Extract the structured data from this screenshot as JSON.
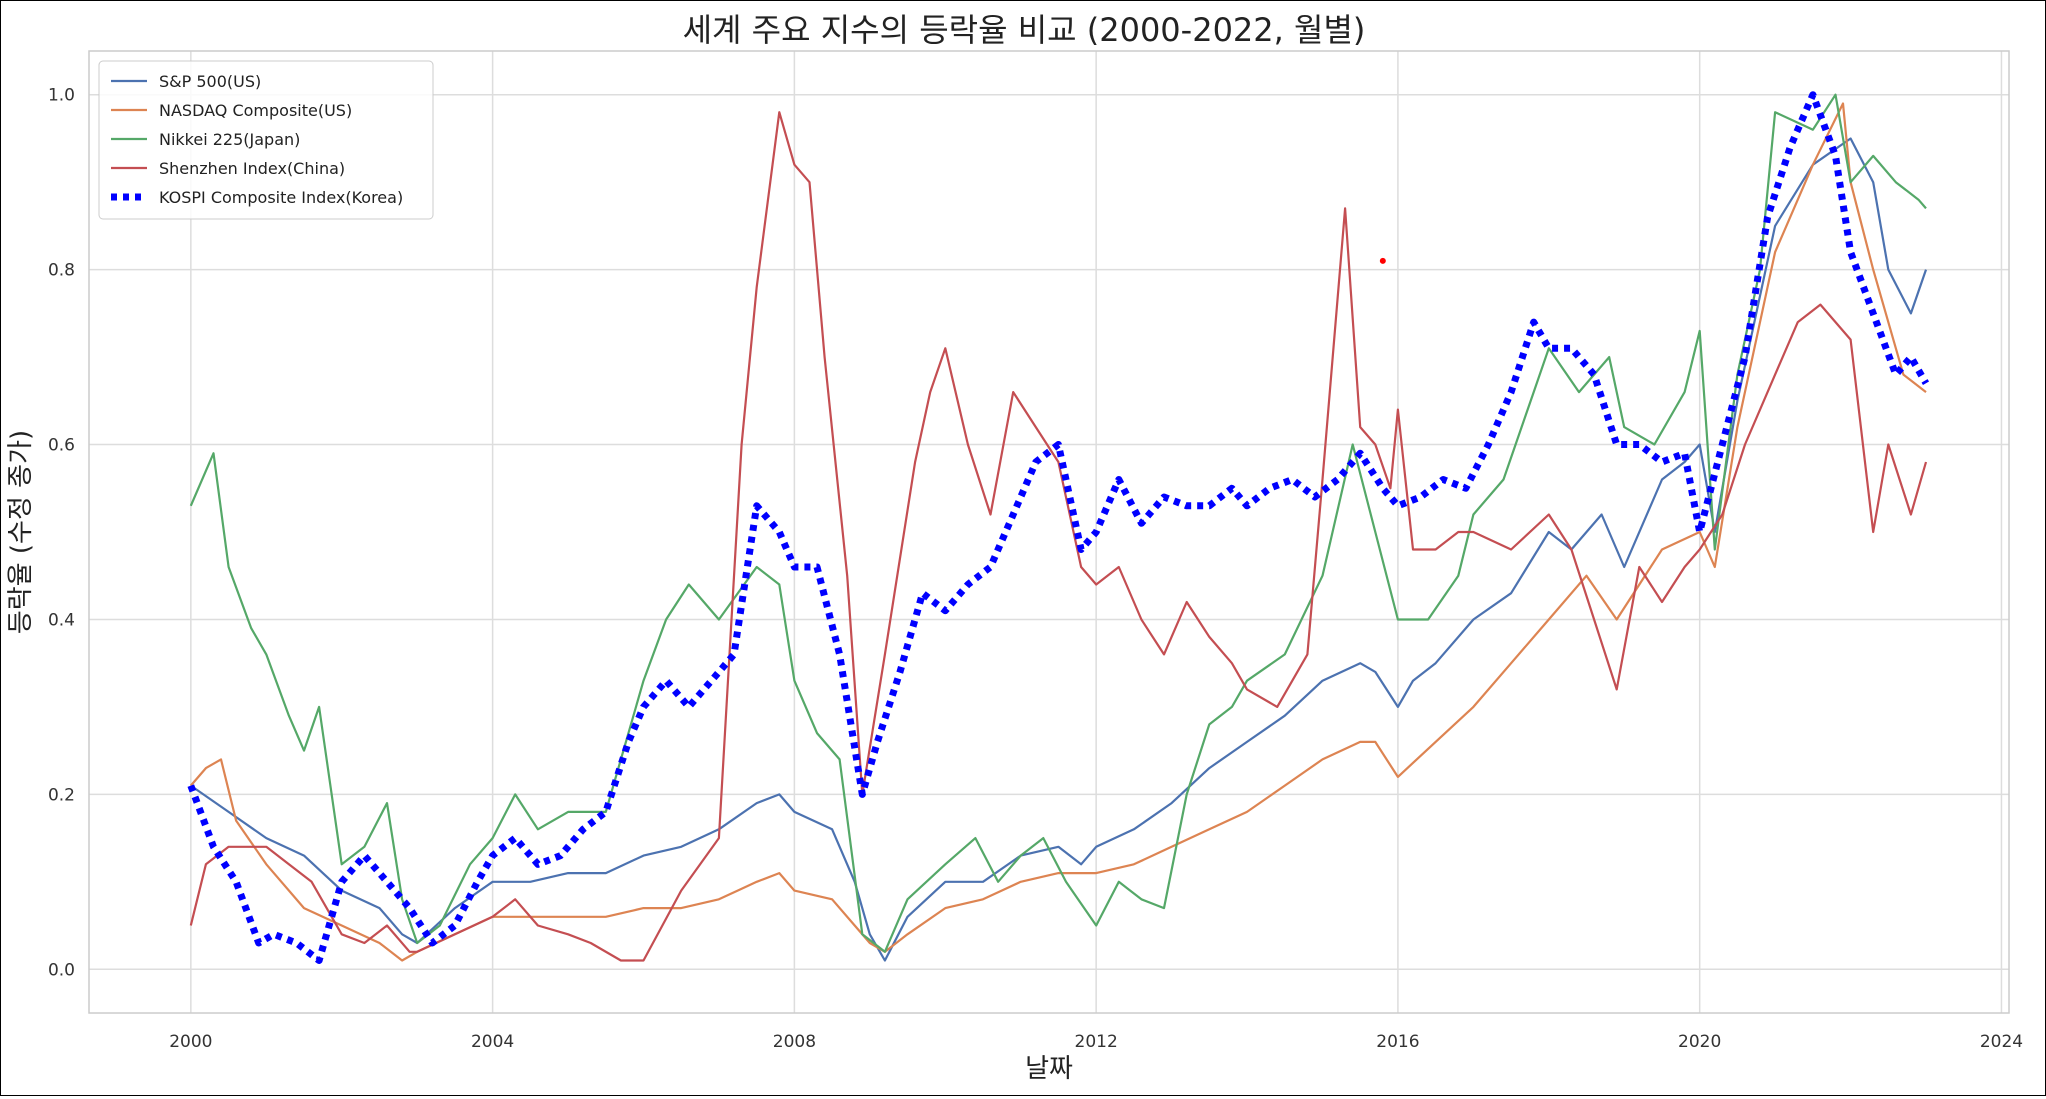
{
  "chart_data": {
    "type": "line",
    "title": "세계 주요 지수의 등락율 비교 (2000-2022, 월별)",
    "xlabel": "날짜",
    "ylabel": "등락율 (수정 종가)",
    "xlim": [
      1998.65,
      2024.1
    ],
    "ylim": [
      -0.05,
      1.05
    ],
    "x_ticks": [
      2000,
      2004,
      2008,
      2012,
      2016,
      2020,
      2024
    ],
    "y_ticks": [
      0.0,
      0.2,
      0.4,
      0.6,
      0.8,
      1.0
    ],
    "x_tick_labels": [
      "2000",
      "2004",
      "2008",
      "2012",
      "2016",
      "2020",
      "2024"
    ],
    "y_tick_labels": [
      "0.0",
      "0.2",
      "0.4",
      "0.6",
      "0.8",
      "1.0"
    ],
    "grid": true,
    "legend_position": "top-left",
    "series": [
      {
        "name": "S&P 500(US)",
        "color": "#4c72b0",
        "style": "solid",
        "x": [
          2000.0,
          2000.5,
          2001.0,
          2001.5,
          2002.0,
          2002.5,
          2002.8,
          2003.0,
          2003.5,
          2004.0,
          2004.5,
          2005.0,
          2005.5,
          2006.0,
          2006.5,
          2007.0,
          2007.5,
          2007.8,
          2008.0,
          2008.5,
          2008.8,
          2009.0,
          2009.2,
          2009.5,
          2010.0,
          2010.5,
          2011.0,
          2011.5,
          2011.8,
          2012.0,
          2012.5,
          2013.0,
          2013.5,
          2014.0,
          2014.5,
          2015.0,
          2015.5,
          2015.7,
          2016.0,
          2016.2,
          2016.5,
          2017.0,
          2017.5,
          2018.0,
          2018.3,
          2018.7,
          2019.0,
          2019.5,
          2019.8,
          2020.0,
          2020.2,
          2020.5,
          2021.0,
          2021.5,
          2022.0,
          2022.3,
          2022.5,
          2022.8,
          2023.0
        ],
        "y": [
          0.21,
          0.18,
          0.15,
          0.13,
          0.09,
          0.07,
          0.04,
          0.03,
          0.07,
          0.1,
          0.1,
          0.11,
          0.11,
          0.13,
          0.14,
          0.16,
          0.19,
          0.2,
          0.18,
          0.16,
          0.1,
          0.04,
          0.01,
          0.06,
          0.1,
          0.1,
          0.13,
          0.14,
          0.12,
          0.14,
          0.16,
          0.19,
          0.23,
          0.26,
          0.29,
          0.33,
          0.35,
          0.34,
          0.3,
          0.33,
          0.35,
          0.4,
          0.43,
          0.5,
          0.48,
          0.52,
          0.46,
          0.56,
          0.58,
          0.6,
          0.5,
          0.65,
          0.85,
          0.92,
          0.95,
          0.9,
          0.8,
          0.75,
          0.8
        ]
      },
      {
        "name": "NASDAQ Composite(US)",
        "color": "#dd8452",
        "style": "solid",
        "x": [
          2000.0,
          2000.2,
          2000.4,
          2000.6,
          2001.0,
          2001.5,
          2002.0,
          2002.5,
          2002.8,
          2003.0,
          2003.5,
          2004.0,
          2004.5,
          2005.0,
          2005.5,
          2006.0,
          2006.5,
          2007.0,
          2007.5,
          2007.8,
          2008.0,
          2008.5,
          2008.8,
          2009.0,
          2009.2,
          2009.5,
          2010.0,
          2010.5,
          2011.0,
          2011.5,
          2012.0,
          2012.5,
          2013.0,
          2013.5,
          2014.0,
          2014.5,
          2015.0,
          2015.5,
          2015.7,
          2016.0,
          2016.5,
          2017.0,
          2017.5,
          2018.0,
          2018.5,
          2018.9,
          2019.5,
          2020.0,
          2020.2,
          2020.5,
          2021.0,
          2021.5,
          2021.9,
          2022.0,
          2022.3,
          2022.7,
          2023.0
        ],
        "y": [
          0.21,
          0.23,
          0.24,
          0.17,
          0.12,
          0.07,
          0.05,
          0.03,
          0.01,
          0.02,
          0.04,
          0.06,
          0.06,
          0.06,
          0.06,
          0.07,
          0.07,
          0.08,
          0.1,
          0.11,
          0.09,
          0.08,
          0.05,
          0.03,
          0.02,
          0.04,
          0.07,
          0.08,
          0.1,
          0.11,
          0.11,
          0.12,
          0.14,
          0.16,
          0.18,
          0.21,
          0.24,
          0.26,
          0.26,
          0.22,
          0.26,
          0.3,
          0.35,
          0.4,
          0.45,
          0.4,
          0.48,
          0.5,
          0.46,
          0.62,
          0.82,
          0.92,
          0.99,
          0.9,
          0.8,
          0.68,
          0.66
        ]
      },
      {
        "name": "Nikkei 225(Japan)",
        "color": "#55a868",
        "style": "solid",
        "x": [
          2000.0,
          2000.2,
          2000.3,
          2000.5,
          2000.8,
          2001.0,
          2001.3,
          2001.5,
          2001.7,
          2002.0,
          2002.3,
          2002.6,
          2002.8,
          2003.0,
          2003.3,
          2003.7,
          2004.0,
          2004.3,
          2004.6,
          2005.0,
          2005.5,
          2006.0,
          2006.3,
          2006.6,
          2007.0,
          2007.5,
          2007.8,
          2008.0,
          2008.3,
          2008.6,
          2008.9,
          2009.2,
          2009.5,
          2010.0,
          2010.4,
          2010.7,
          2011.0,
          2011.3,
          2011.6,
          2012.0,
          2012.3,
          2012.6,
          2012.9,
          2013.2,
          2013.5,
          2013.8,
          2014.0,
          2014.5,
          2015.0,
          2015.4,
          2015.7,
          2016.0,
          2016.4,
          2016.8,
          2017.0,
          2017.4,
          2017.8,
          2018.0,
          2018.4,
          2018.8,
          2019.0,
          2019.4,
          2019.8,
          2020.0,
          2020.2,
          2020.5,
          2020.8,
          2021.0,
          2021.5,
          2021.8,
          2022.0,
          2022.3,
          2022.6,
          2022.9,
          2023.0
        ],
        "y": [
          0.53,
          0.57,
          0.59,
          0.46,
          0.39,
          0.36,
          0.29,
          0.25,
          0.3,
          0.12,
          0.14,
          0.19,
          0.08,
          0.03,
          0.05,
          0.12,
          0.15,
          0.2,
          0.16,
          0.18,
          0.18,
          0.33,
          0.4,
          0.44,
          0.4,
          0.46,
          0.44,
          0.33,
          0.27,
          0.24,
          0.04,
          0.02,
          0.08,
          0.12,
          0.15,
          0.1,
          0.13,
          0.15,
          0.1,
          0.05,
          0.1,
          0.08,
          0.07,
          0.2,
          0.28,
          0.3,
          0.33,
          0.36,
          0.45,
          0.6,
          0.5,
          0.4,
          0.4,
          0.45,
          0.52,
          0.56,
          0.66,
          0.71,
          0.66,
          0.7,
          0.62,
          0.6,
          0.66,
          0.73,
          0.48,
          0.68,
          0.8,
          0.98,
          0.96,
          1.0,
          0.9,
          0.93,
          0.9,
          0.88,
          0.87
        ]
      },
      {
        "name": "Shenzhen Index(China)",
        "color": "#c44e52",
        "style": "solid",
        "x": [
          2000.0,
          2000.2,
          2000.5,
          2000.8,
          2001.0,
          2001.3,
          2001.6,
          2002.0,
          2002.3,
          2002.6,
          2002.9,
          2003.0,
          2003.5,
          2004.0,
          2004.3,
          2004.6,
          2005.0,
          2005.3,
          2005.7,
          2006.0,
          2006.5,
          2007.0,
          2007.3,
          2007.5,
          2007.8,
          2008.0,
          2008.2,
          2008.4,
          2008.7,
          2008.9,
          2009.2,
          2009.6,
          2009.8,
          2010.0,
          2010.3,
          2010.6,
          2010.9,
          2011.2,
          2011.5,
          2011.8,
          2012.0,
          2012.3,
          2012.6,
          2012.9,
          2013.2,
          2013.5,
          2013.8,
          2014.0,
          2014.4,
          2014.8,
          2015.0,
          2015.3,
          2015.5,
          2015.7,
          2015.9,
          2016.0,
          2016.2,
          2016.5,
          2016.8,
          2017.0,
          2017.5,
          2018.0,
          2018.3,
          2018.6,
          2018.9,
          2019.2,
          2019.5,
          2019.8,
          2020.0,
          2020.3,
          2020.6,
          2021.0,
          2021.3,
          2021.6,
          2022.0,
          2022.3,
          2022.5,
          2022.8,
          2023.0
        ],
        "y": [
          0.05,
          0.12,
          0.14,
          0.14,
          0.14,
          0.12,
          0.1,
          0.04,
          0.03,
          0.05,
          0.02,
          0.02,
          0.04,
          0.06,
          0.08,
          0.05,
          0.04,
          0.03,
          0.01,
          0.01,
          0.09,
          0.15,
          0.6,
          0.78,
          0.98,
          0.92,
          0.9,
          0.7,
          0.45,
          0.2,
          0.36,
          0.58,
          0.66,
          0.71,
          0.6,
          0.52,
          0.66,
          0.62,
          0.58,
          0.46,
          0.44,
          0.46,
          0.4,
          0.36,
          0.42,
          0.38,
          0.35,
          0.32,
          0.3,
          0.36,
          0.56,
          0.87,
          0.62,
          0.6,
          0.55,
          0.64,
          0.48,
          0.48,
          0.5,
          0.5,
          0.48,
          0.52,
          0.48,
          0.4,
          0.32,
          0.46,
          0.42,
          0.46,
          0.48,
          0.52,
          0.6,
          0.68,
          0.74,
          0.76,
          0.72,
          0.5,
          0.6,
          0.52,
          0.58
        ]
      },
      {
        "name": "KOSPI Composite Index(Korea)",
        "color": "#0000ff",
        "style": "dotted",
        "x": [
          2000.0,
          2000.3,
          2000.6,
          2000.9,
          2001.1,
          2001.4,
          2001.7,
          2002.0,
          2002.3,
          2002.6,
          2002.9,
          2003.2,
          2003.5,
          2003.8,
          2004.0,
          2004.3,
          2004.6,
          2004.9,
          2005.2,
          2005.5,
          2005.8,
          2006.0,
          2006.3,
          2006.6,
          2006.9,
          2007.2,
          2007.5,
          2007.8,
          2008.0,
          2008.3,
          2008.6,
          2008.9,
          2009.1,
          2009.4,
          2009.7,
          2010.0,
          2010.3,
          2010.6,
          2010.9,
          2011.2,
          2011.5,
          2011.8,
          2012.0,
          2012.3,
          2012.6,
          2012.9,
          2013.2,
          2013.5,
          2013.8,
          2014.0,
          2014.3,
          2014.6,
          2014.9,
          2015.2,
          2015.5,
          2015.8,
          2016.0,
          2016.3,
          2016.6,
          2016.9,
          2017.2,
          2017.5,
          2017.8,
          2018.0,
          2018.3,
          2018.6,
          2018.9,
          2019.2,
          2019.5,
          2019.8,
          2020.0,
          2020.3,
          2020.6,
          2020.9,
          2021.2,
          2021.5,
          2021.8,
          2022.0,
          2022.3,
          2022.6,
          2022.8,
          2023.0
        ],
        "y": [
          0.21,
          0.14,
          0.1,
          0.03,
          0.04,
          0.03,
          0.01,
          0.1,
          0.13,
          0.1,
          0.07,
          0.03,
          0.05,
          0.1,
          0.13,
          0.15,
          0.12,
          0.13,
          0.16,
          0.18,
          0.26,
          0.3,
          0.33,
          0.3,
          0.33,
          0.36,
          0.53,
          0.5,
          0.46,
          0.46,
          0.36,
          0.2,
          0.26,
          0.34,
          0.43,
          0.41,
          0.44,
          0.46,
          0.52,
          0.58,
          0.6,
          0.48,
          0.5,
          0.56,
          0.51,
          0.54,
          0.53,
          0.53,
          0.55,
          0.53,
          0.55,
          0.56,
          0.54,
          0.56,
          0.59,
          0.55,
          0.53,
          0.54,
          0.56,
          0.55,
          0.6,
          0.66,
          0.74,
          0.71,
          0.71,
          0.68,
          0.6,
          0.6,
          0.58,
          0.59,
          0.5,
          0.6,
          0.7,
          0.86,
          0.94,
          1.0,
          0.93,
          0.82,
          0.75,
          0.68,
          0.7,
          0.67
        ]
      }
    ],
    "annotation_point": {
      "x": 2015.8,
      "y": 0.81,
      "color": "#ff0000"
    }
  }
}
